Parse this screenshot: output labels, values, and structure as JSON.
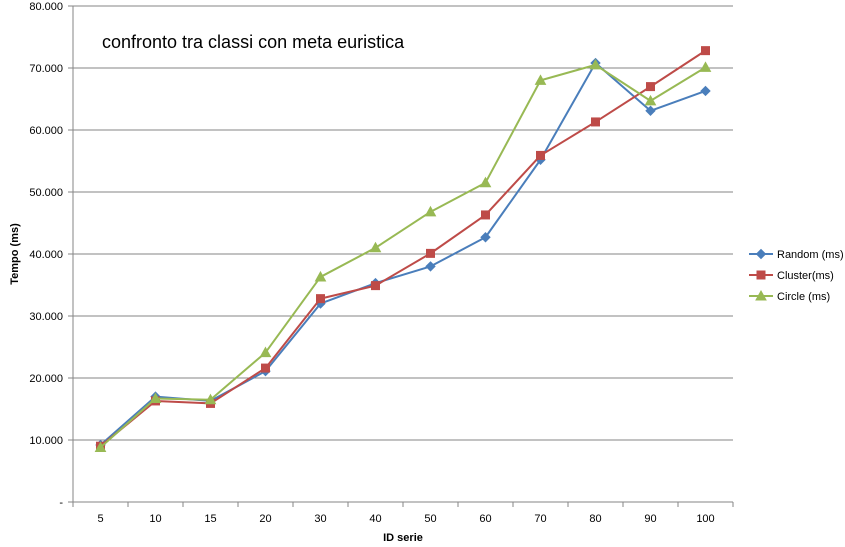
{
  "chart_data": {
    "type": "line",
    "title": "confronto tra classi con meta euristica",
    "xlabel": "ID serie",
    "ylabel": "Tempo (ms)",
    "categories": [
      "5",
      "10",
      "15",
      "20",
      "30",
      "40",
      "50",
      "60",
      "70",
      "80",
      "90",
      "100"
    ],
    "ylim": [
      0,
      80000
    ],
    "y_tick_labels": [
      "-",
      "10.000",
      "20.000",
      "30.000",
      "40.000",
      "50.000",
      "60.000",
      "70.000",
      "80.000"
    ],
    "grid": true,
    "legend_position": "right",
    "series": [
      {
        "name": "Random (ms)",
        "color": "#4A7EBB",
        "marker": "diamond",
        "values": [
          9200,
          17000,
          16300,
          21100,
          32000,
          35300,
          38000,
          42700,
          55200,
          70800,
          63100,
          66300
        ]
      },
      {
        "name": "Cluster(ms)",
        "color": "#BE4B48",
        "marker": "square",
        "values": [
          9000,
          16300,
          15900,
          21600,
          32800,
          34900,
          40100,
          46300,
          55900,
          61300,
          67000,
          72800
        ]
      },
      {
        "name": "Circle (ms)",
        "color": "#98B954",
        "marker": "triangle",
        "values": [
          8800,
          16700,
          16500,
          24100,
          36300,
          41000,
          46800,
          51500,
          68000,
          70500,
          64700,
          70100
        ]
      }
    ]
  }
}
